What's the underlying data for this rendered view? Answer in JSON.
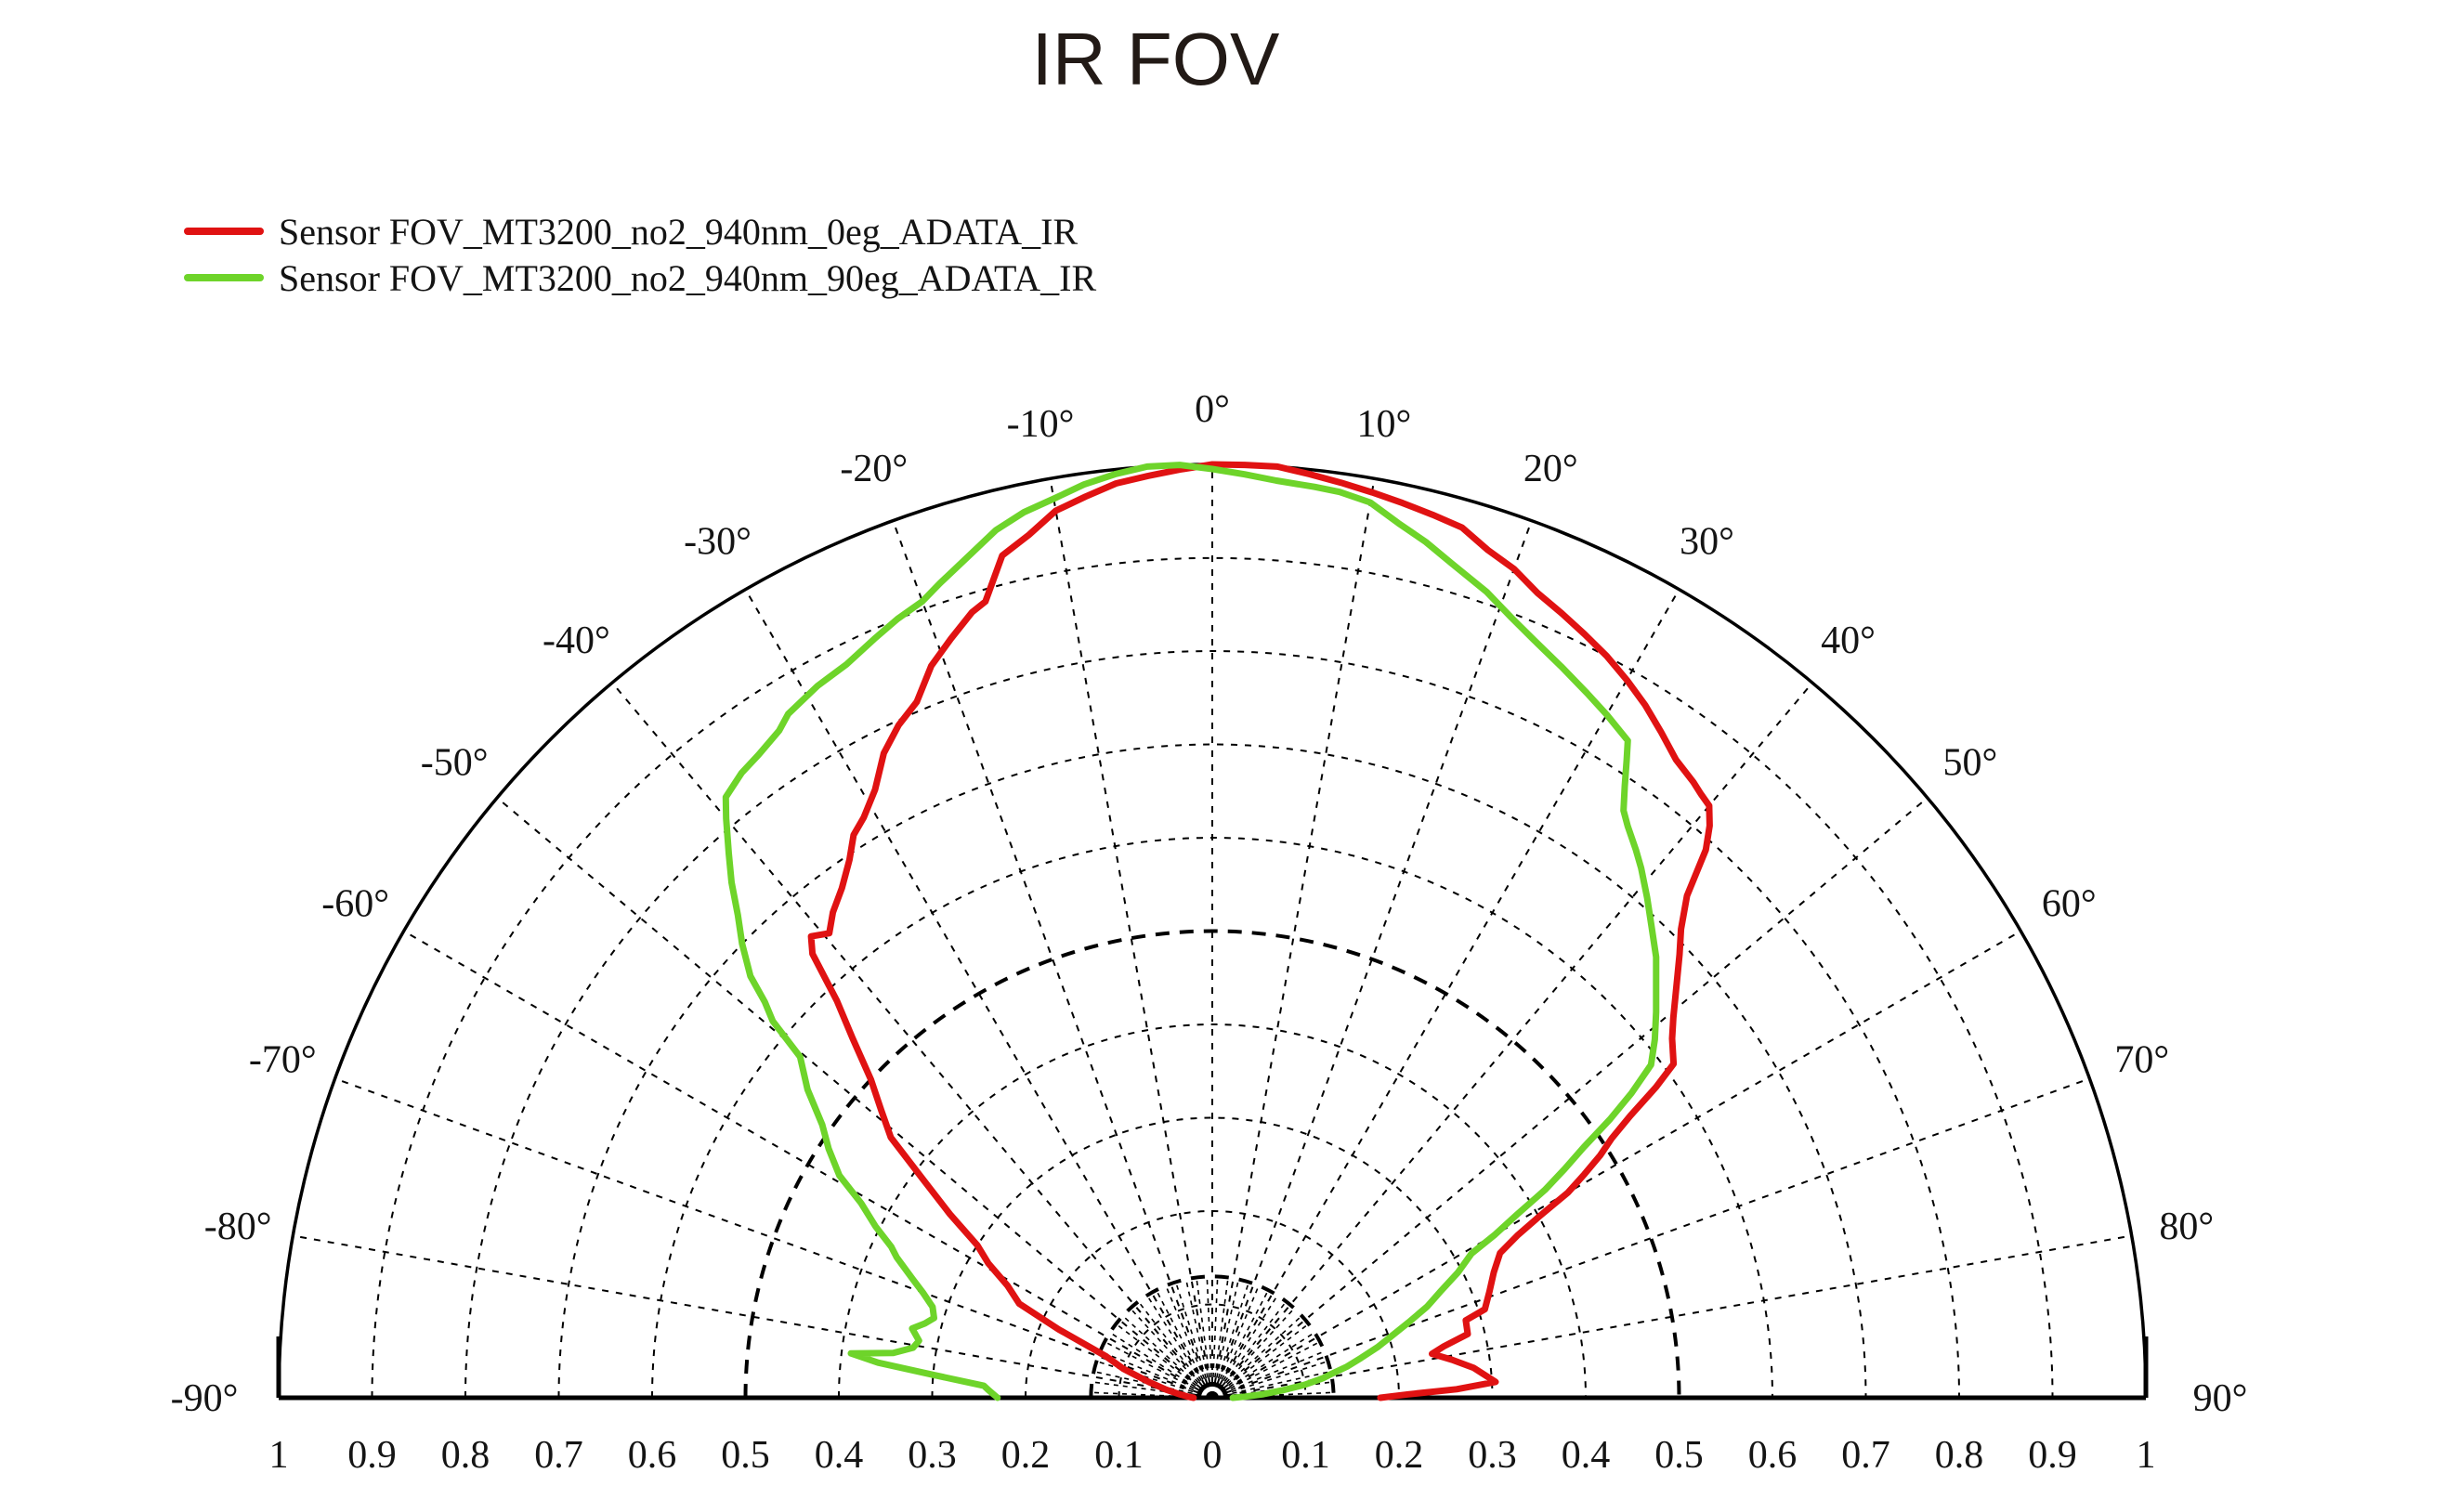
{
  "page": {
    "title": "IR FOV"
  },
  "legend": {
    "items": [
      {
        "label": "Sensor FOV_MT3200_no2_940nm_0eg_ADATA_IR",
        "color": "#e01212"
      },
      {
        "label": "Sensor FOV_MT3200_no2_940nm_90eg_ADATA_IR",
        "color": "#6ed42a"
      }
    ]
  },
  "chart_data": {
    "type": "line",
    "projection": "polar-half",
    "title": "IR FOV",
    "xlabel": "",
    "ylabel": "",
    "radial_range": [
      0,
      1
    ],
    "angle_range_deg": [
      -90,
      90
    ],
    "grid": {
      "grid_on": true,
      "light_circles": [
        0.1,
        0.2,
        0.3,
        0.4,
        0.6,
        0.7,
        0.8,
        0.9
      ],
      "bold_circles": [
        0.13,
        0.5
      ],
      "outer_circle": 1.0,
      "spoke_step_deg": 10,
      "minor_spoke_step_deg": 5,
      "minor_spoke_max_r": 0.13,
      "line_color": "#000000"
    },
    "angle_ticks": {
      "start_deg": -90,
      "step_deg": 10,
      "labels": [
        "-90°",
        "-80°",
        "-70°",
        "-60°",
        "-50°",
        "-40°",
        "-30°",
        "-20°",
        "-10°",
        "0°",
        "10°",
        "20°",
        "30°",
        "40°",
        "50°",
        "60°",
        "70°",
        "80°",
        "90°"
      ]
    },
    "radial_ticks": {
      "start": -1,
      "step": 0.1,
      "labels": [
        "1",
        "0.9",
        "0.8",
        "0.7",
        "0.6",
        "0.5",
        "0.4",
        "0.3",
        "0.2",
        "0.1",
        "0",
        "0.1",
        "0.2",
        "0.3",
        "0.4",
        "0.5",
        "0.6",
        "0.7",
        "0.8",
        "0.9",
        "1"
      ]
    },
    "legend_position": "top-left",
    "series": [
      {
        "name": "Sensor FOV_MT3200_no2_940nm_0eg_ADATA_IR",
        "color": "#e01212",
        "points_theta_r": [
          [
            -90,
            0.02
          ],
          [
            -88,
            0.025
          ],
          [
            -84,
            0.035
          ],
          [
            -80,
            0.05
          ],
          [
            -76,
            0.07
          ],
          [
            -72,
            0.1
          ],
          [
            -68.6,
            0.123
          ],
          [
            -66,
            0.18
          ],
          [
            -64,
            0.23
          ],
          [
            -61.3,
            0.25
          ],
          [
            -59,
            0.28
          ],
          [
            -57,
            0.3
          ],
          [
            -55,
            0.343
          ],
          [
            -53,
            0.387
          ],
          [
            -51,
            0.443
          ],
          [
            -49,
            0.47
          ],
          [
            -47,
            0.5
          ],
          [
            -45,
            0.545
          ],
          [
            -43.4,
            0.585
          ],
          [
            -42,
            0.64
          ],
          [
            -41,
            0.655
          ],
          [
            -39.5,
            0.645
          ],
          [
            -38,
            0.66
          ],
          [
            -36,
            0.675
          ],
          [
            -34,
            0.695
          ],
          [
            -32.5,
            0.715
          ],
          [
            -31,
            0.725
          ],
          [
            -29,
            0.745
          ],
          [
            -27,
            0.775
          ],
          [
            -25,
            0.795
          ],
          [
            -23,
            0.81
          ],
          [
            -21,
            0.84
          ],
          [
            -19,
            0.86
          ],
          [
            -17,
            0.88
          ],
          [
            -15.9,
            0.887
          ],
          [
            -14,
            0.93
          ],
          [
            -12,
            0.945
          ],
          [
            -10,
            0.965
          ],
          [
            -8,
            0.975
          ],
          [
            -6,
            0.985
          ],
          [
            -4,
            0.99
          ],
          [
            -2,
            0.995
          ],
          [
            0,
            1.0
          ],
          [
            2,
            1.0
          ],
          [
            4,
            1.0
          ],
          [
            6,
            0.995
          ],
          [
            8,
            0.99
          ],
          [
            10,
            0.985
          ],
          [
            12,
            0.98
          ],
          [
            14,
            0.975
          ],
          [
            16,
            0.97
          ],
          [
            18,
            0.955
          ],
          [
            20,
            0.945
          ],
          [
            22,
            0.93
          ],
          [
            24,
            0.92
          ],
          [
            26,
            0.91
          ],
          [
            28,
            0.9
          ],
          [
            30,
            0.888
          ],
          [
            32,
            0.875
          ],
          [
            34,
            0.86
          ],
          [
            36,
            0.845
          ],
          [
            38,
            0.837
          ],
          [
            39,
            0.832
          ],
          [
            40,
            0.828
          ],
          [
            41,
            0.812
          ],
          [
            42,
            0.79
          ],
          [
            43.4,
            0.74
          ],
          [
            45,
            0.71
          ],
          [
            46.5,
            0.69
          ],
          [
            48,
            0.67
          ],
          [
            50.5,
            0.64
          ],
          [
            52,
            0.625
          ],
          [
            54.1,
            0.61
          ],
          [
            55,
            0.58
          ],
          [
            56,
            0.54
          ],
          [
            57,
            0.51
          ],
          [
            58,
            0.49
          ],
          [
            59,
            0.465
          ],
          [
            60,
            0.44
          ],
          [
            61,
            0.4
          ],
          [
            62,
            0.37
          ],
          [
            63.3,
            0.345
          ],
          [
            66,
            0.33
          ],
          [
            69,
            0.318
          ],
          [
            72,
            0.307
          ],
          [
            73,
            0.284
          ],
          [
            76,
            0.282
          ],
          [
            77.5,
            0.254
          ],
          [
            78.7,
            0.24
          ],
          [
            81,
            0.26
          ],
          [
            83.5,
            0.282
          ],
          [
            86.8,
            0.304
          ],
          [
            88,
            0.262
          ],
          [
            89,
            0.21
          ],
          [
            90,
            0.18
          ]
        ]
      },
      {
        "name": "Sensor FOV_MT3200_no2_940nm_90eg_ADATA_IR",
        "color": "#6ed42a",
        "points_theta_r": [
          [
            -90,
            0.23
          ],
          [
            -88,
            0.24
          ],
          [
            -87,
            0.245
          ],
          [
            -85.3,
            0.3
          ],
          [
            -84,
            0.36
          ],
          [
            -83,
            0.39
          ],
          [
            -82,
            0.345
          ],
          [
            -80.5,
            0.325
          ],
          [
            -79,
            0.32
          ],
          [
            -77,
            0.33
          ],
          [
            -75.5,
            0.318
          ],
          [
            -74,
            0.31
          ],
          [
            -72,
            0.315
          ],
          [
            -70,
            0.33
          ],
          [
            -68.4,
            0.345
          ],
          [
            -66,
            0.37
          ],
          [
            -64.8,
            0.38
          ],
          [
            -63,
            0.405
          ],
          [
            -61,
            0.43
          ],
          [
            -59.2,
            0.465
          ],
          [
            -57,
            0.49
          ],
          [
            -55,
            0.51
          ],
          [
            -52.7,
            0.545
          ],
          [
            -50.4,
            0.573
          ],
          [
            -49.4,
            0.62
          ],
          [
            -48.5,
            0.64
          ],
          [
            -47.6,
            0.67
          ],
          [
            -46,
            0.7
          ],
          [
            -44.5,
            0.725
          ],
          [
            -43,
            0.755
          ],
          [
            -41.6,
            0.78
          ],
          [
            -40,
            0.81
          ],
          [
            -39,
            0.828
          ],
          [
            -37,
            0.838
          ],
          [
            -35.2,
            0.843
          ],
          [
            -33,
            0.852
          ],
          [
            -31.8,
            0.862
          ],
          [
            -29,
            0.872
          ],
          [
            -26.5,
            0.878
          ],
          [
            -24,
            0.89
          ],
          [
            -22,
            0.9
          ],
          [
            -20,
            0.908
          ],
          [
            -18.5,
            0.92
          ],
          [
            -16,
            0.94
          ],
          [
            -14,
            0.958
          ],
          [
            -12,
            0.97
          ],
          [
            -10,
            0.978
          ],
          [
            -8,
            0.988
          ],
          [
            -6,
            0.995
          ],
          [
            -4,
            1.0
          ],
          [
            -2,
            1.0
          ],
          [
            0,
            0.995
          ],
          [
            2,
            0.99
          ],
          [
            4,
            0.985
          ],
          [
            6.4,
            0.982
          ],
          [
            8,
            0.98
          ],
          [
            10,
            0.974
          ],
          [
            12,
            0.958
          ],
          [
            14,
            0.945
          ],
          [
            16,
            0.93
          ],
          [
            18.8,
            0.912
          ],
          [
            21,
            0.895
          ],
          [
            23,
            0.882
          ],
          [
            25.5,
            0.868
          ],
          [
            28,
            0.855
          ],
          [
            30,
            0.845
          ],
          [
            32.3,
            0.833
          ],
          [
            33,
            0.815
          ],
          [
            34,
            0.79
          ],
          [
            35,
            0.768
          ],
          [
            36,
            0.757
          ],
          [
            37.7,
            0.742
          ],
          [
            39,
            0.73
          ],
          [
            41,
            0.71
          ],
          [
            43,
            0.69
          ],
          [
            45.2,
            0.67
          ],
          [
            47,
            0.65
          ],
          [
            49,
            0.63
          ],
          [
            51,
            0.61
          ],
          [
            52.8,
            0.59
          ],
          [
            54,
            0.555
          ],
          [
            55,
            0.52
          ],
          [
            56,
            0.48
          ],
          [
            57,
            0.45
          ],
          [
            58,
            0.42
          ],
          [
            59,
            0.38
          ],
          [
            60,
            0.35
          ],
          [
            60.9,
            0.318
          ],
          [
            63,
            0.295
          ],
          [
            65,
            0.27
          ],
          [
            67,
            0.25
          ],
          [
            69,
            0.225
          ],
          [
            71.3,
            0.2
          ],
          [
            73,
            0.185
          ],
          [
            75,
            0.165
          ],
          [
            77,
            0.148
          ],
          [
            78.7,
            0.13
          ],
          [
            80,
            0.12
          ],
          [
            82,
            0.1
          ],
          [
            84,
            0.075
          ],
          [
            86,
            0.055
          ],
          [
            88,
            0.035
          ],
          [
            90,
            0.022
          ]
        ]
      }
    ]
  }
}
